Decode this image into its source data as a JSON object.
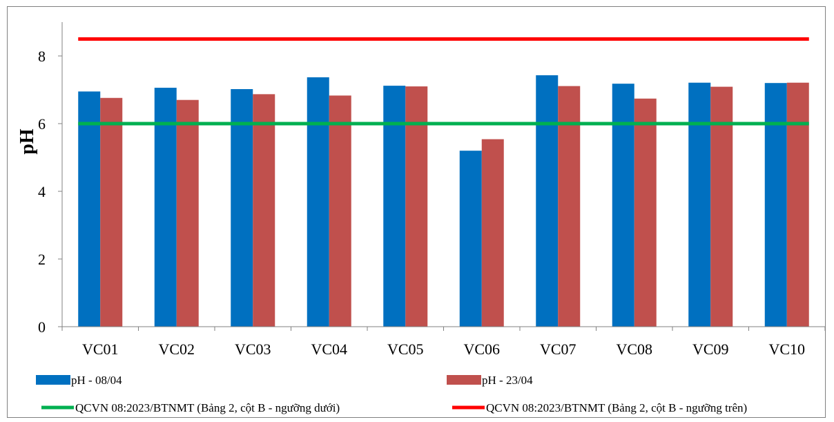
{
  "chart_data": {
    "type": "bar",
    "title": "",
    "xlabel": "",
    "ylabel": "pH",
    "ylim": [
      0,
      9
    ],
    "yticks": [
      0,
      2,
      4,
      6,
      8
    ],
    "grid": false,
    "legend_position": "bottom",
    "categories": [
      "VC01",
      "VC02",
      "VC03",
      "VC04",
      "VC05",
      "VC06",
      "VC07",
      "VC08",
      "VC09",
      "VC10"
    ],
    "series": [
      {
        "name": "pH - 08/04",
        "color": "#0070c0",
        "values": [
          6.95,
          7.06,
          7.02,
          7.37,
          7.12,
          5.2,
          7.43,
          7.18,
          7.21,
          7.2
        ]
      },
      {
        "name": "pH - 23/04",
        "color": "#c0504d",
        "values": [
          6.76,
          6.7,
          6.87,
          6.83,
          7.1,
          5.54,
          7.11,
          6.74,
          7.09,
          7.21
        ]
      }
    ],
    "reference_lines": [
      {
        "name": "QCVN 08:2023/BTNMT (Bảng 2, cột B - ngưỡng dưới)",
        "value": 6,
        "color": "#00b050"
      },
      {
        "name": "QCVN 08:2023/BTNMT (Bảng 2, cột B - ngưỡng trên)",
        "value": 8.5,
        "color": "#ff0000"
      }
    ]
  }
}
